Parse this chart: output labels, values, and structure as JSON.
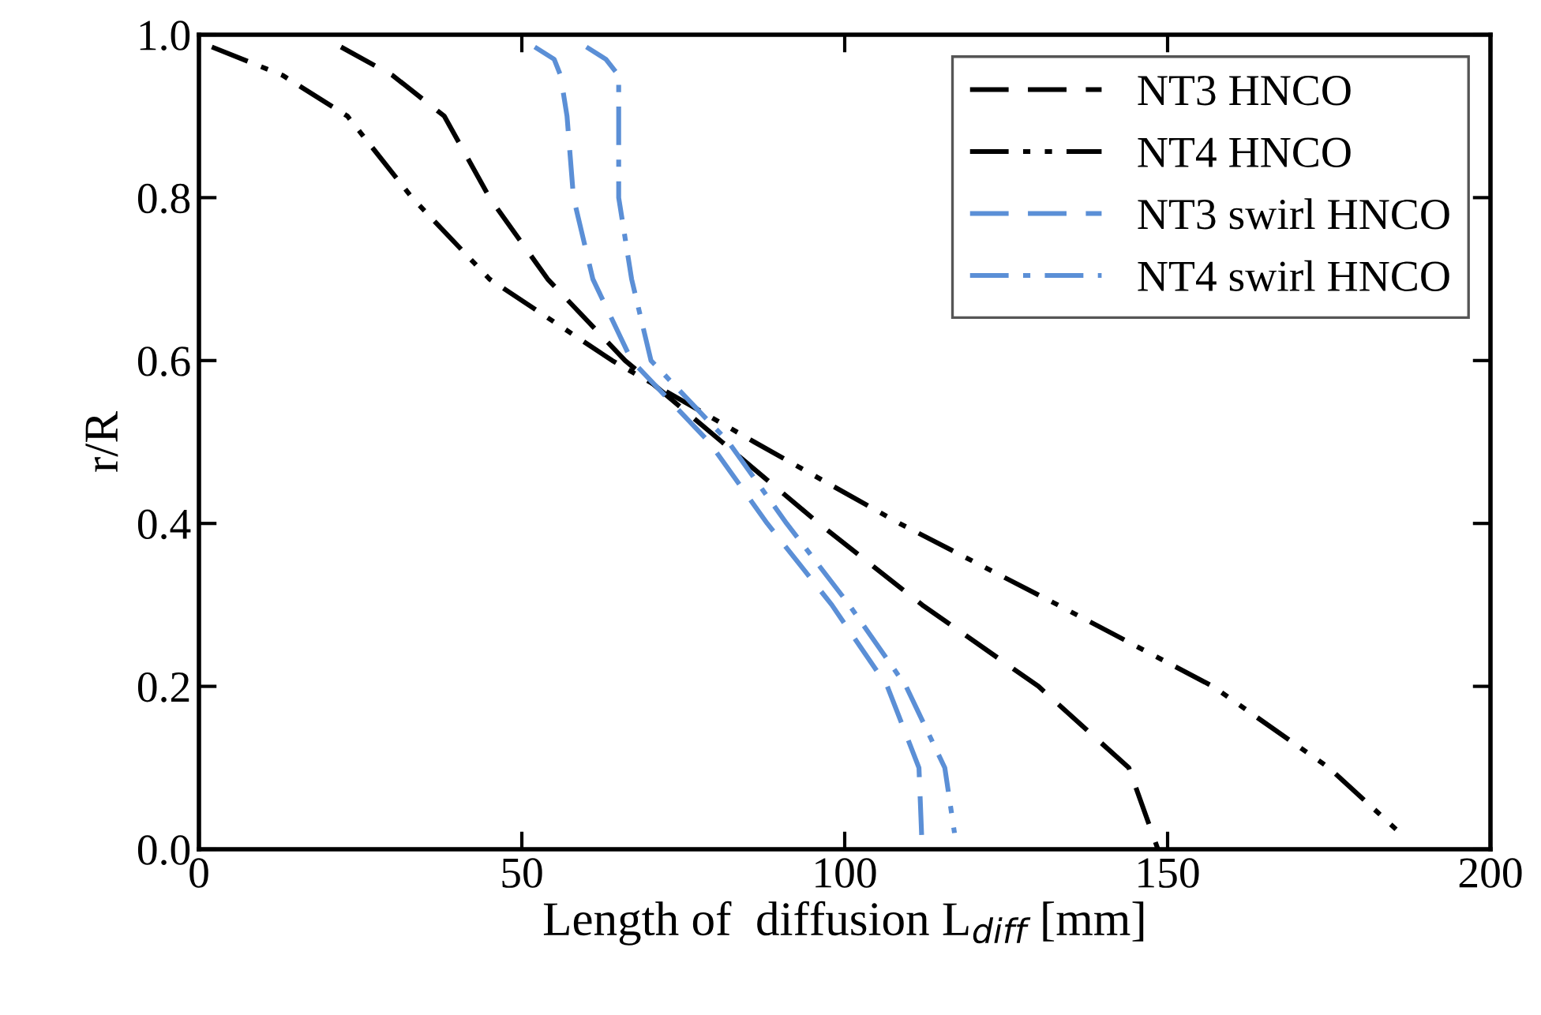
{
  "chart_data": {
    "type": "line",
    "xlabel": "Length of  diffusion L$_{diff}$ [mm]",
    "ylabel": "r/R",
    "xlim": [
      0,
      200
    ],
    "ylim": [
      0,
      1.0
    ],
    "xticks": [
      0,
      50,
      100,
      150,
      200
    ],
    "yticks": [
      {
        "value": 0,
        "label": "0.0"
      },
      {
        "value": 0.2,
        "label": "0.2"
      },
      {
        "value": 0.4,
        "label": "0.4"
      },
      {
        "value": 0.6,
        "label": "0.6"
      },
      {
        "value": 0.8,
        "label": "0.8"
      },
      {
        "value": 1.0,
        "label": "1.0"
      }
    ],
    "grid": false,
    "legend": "top right",
    "marker": "none",
    "series": [
      {
        "name": "NT3 HNCO",
        "color": "#000000",
        "line_style": "dashed",
        "x": [
          22,
          30,
          38,
          45,
          54,
          66,
          81,
          96,
          112,
          130,
          144,
          148.5
        ],
        "values": [
          0.985,
          0.95,
          0.9,
          0.8,
          0.7,
          0.6,
          0.5,
          0.4,
          0.3,
          0.2,
          0.1,
          0.0
        ]
      },
      {
        "name": "NT4 HNCO",
        "color": "#000000",
        "line_style": "dashdotdot",
        "x": [
          2,
          13,
          23,
          33,
          45,
          64,
          86,
          108.5,
          133,
          157,
          175,
          186
        ],
        "values": [
          0.985,
          0.95,
          0.9,
          0.8,
          0.7,
          0.6,
          0.5,
          0.4,
          0.3,
          0.2,
          0.1,
          0.02
        ]
      },
      {
        "name": "NT3 swirl HNCO",
        "color": "#5b8fd6",
        "line_style": "dashed",
        "x": [
          52,
          55,
          56,
          57,
          58,
          61,
          67,
          79,
          88,
          98,
          106.6,
          111.5,
          112
        ],
        "values": [
          0.985,
          0.97,
          0.95,
          0.9,
          0.8,
          0.7,
          0.6,
          0.5,
          0.4,
          0.3,
          0.2,
          0.1,
          0.0
        ]
      },
      {
        "name": "NT4 swirl HNCO",
        "color": "#5b8fd6",
        "line_style": "dashdot",
        "x": [
          60,
          63,
          65,
          65,
          65,
          67,
          70,
          82,
          91,
          100.7,
          109.5,
          115.5,
          117
        ],
        "values": [
          0.985,
          0.97,
          0.95,
          0.9,
          0.8,
          0.7,
          0.6,
          0.5,
          0.4,
          0.3,
          0.2,
          0.1,
          0.02
        ]
      }
    ]
  }
}
